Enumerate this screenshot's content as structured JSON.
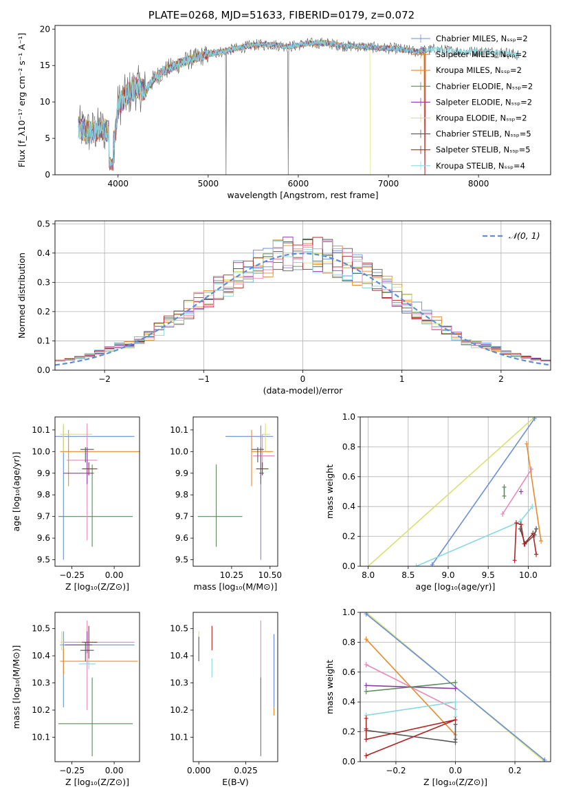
{
  "figure_title": "PLATE=0268, MJD=51633, FIBERID=0179, z=0.072",
  "colors": {
    "chab_miles": "#6a8fd8",
    "salp_miles": "#e8862a",
    "krou_miles": "#e88a2a",
    "chab_elodie": "#5a8a5a",
    "salp_elodie": "#8a3aaa",
    "krou_elodie": "#d8e070",
    "chab_stelib": "#555555",
    "salp_stelib": "#b22222",
    "krou_stelib": "#88d8e0",
    "pink": "#e888b8",
    "normal": "#5b8fd9"
  },
  "chart_data": [
    {
      "id": "spectrum",
      "type": "line",
      "xlabel": "wavelength [Angstrom, rest frame]",
      "ylabel": "Flux [f_λ10⁻¹⁷ erg cm⁻² s⁻¹ A⁻¹]",
      "xlim": [
        3300,
        8800
      ],
      "ylim": [
        0,
        20.5
      ],
      "xticks": [
        "4000",
        "5000",
        "6000",
        "7000",
        "8000"
      ],
      "yticks": [
        "0",
        "5",
        "10",
        "15",
        "20"
      ],
      "grid": false,
      "legend_position": "top-right",
      "legend": [
        {
          "text": "Chabrier MILES, Nₛₛₚ=2",
          "color": "chab_miles"
        },
        {
          "text": "Salpeter MILES, Nₛₛₚ=2",
          "color": "salp_miles"
        },
        {
          "text": "Kroupa MILES, Nₛₛₚ=2",
          "color": "krou_miles"
        },
        {
          "text": "Chabrier ELODIE, Nₛₛₚ=2",
          "color": "chab_elodie"
        },
        {
          "text": "Salpeter ELODIE, Nₛₛₚ=2",
          "color": "salp_elodie"
        },
        {
          "text": "Kroupa ELODIE, Nₛₛₚ=2",
          "color": "krou_elodie"
        },
        {
          "text": "Chabrier STELIB, Nₛₛₚ=5",
          "color": "chab_stelib"
        },
        {
          "text": "Salpeter STELIB, Nₛₛₚ=5",
          "color": "salp_stelib"
        },
        {
          "text": "Kroupa STELIB, Nₛₛₚ=4",
          "color": "krou_stelib"
        }
      ],
      "continuum": [
        [
          3560,
          6.5
        ],
        [
          3700,
          5.8
        ],
        [
          3800,
          6.3
        ],
        [
          3900,
          6.0
        ],
        [
          3960,
          4.5
        ],
        [
          4000,
          9.5
        ],
        [
          4100,
          11.0
        ],
        [
          4200,
          12.0
        ],
        [
          4300,
          11.5
        ],
        [
          4400,
          13.2
        ],
        [
          4500,
          14.2
        ],
        [
          4700,
          15.4
        ],
        [
          4900,
          16.2
        ],
        [
          5100,
          16.8
        ],
        [
          5300,
          17.3
        ],
        [
          5500,
          17.8
        ],
        [
          5700,
          17.9
        ],
        [
          5900,
          17.6
        ],
        [
          6100,
          18.0
        ],
        [
          6300,
          18.1
        ],
        [
          6500,
          17.7
        ],
        [
          6700,
          17.6
        ],
        [
          6900,
          17.4
        ],
        [
          7100,
          17.3
        ],
        [
          7300,
          16.9
        ],
        [
          7500,
          17.2
        ],
        [
          7700,
          17.0
        ],
        [
          7900,
          16.9
        ],
        [
          8100,
          16.9
        ],
        [
          8300,
          16.8
        ],
        [
          8450,
          16.4
        ]
      ]
    },
    {
      "id": "residual-hist",
      "type": "bar",
      "xlabel": "(data-model)/error",
      "ylabel": "Normed distribution",
      "xlim": [
        -2.5,
        2.5
      ],
      "ylim": [
        0,
        0.51
      ],
      "xticks": [
        "−2",
        "−1",
        "0",
        "1",
        "2"
      ],
      "yticks": [
        "0.0",
        "0.1",
        "0.2",
        "0.3",
        "0.4",
        "0.5"
      ],
      "grid": true,
      "legend_position": "top-right",
      "legend": [
        {
          "text": "𝒩(0, 1)",
          "color": "normal"
        }
      ],
      "bin_width": 0.1
    },
    {
      "id": "age-vs-Z",
      "type": "scatter",
      "xlabel": "Z [log₁₀(Z/Z⊙)]",
      "ylabel": "age  [log₁₀(age/yr)]",
      "xlim": [
        -0.35,
        0.15
      ],
      "ylim": [
        9.47,
        10.16
      ],
      "xticks": [
        "−0.25",
        "0.00"
      ],
      "yticks": [
        "9.5",
        "9.6",
        "9.7",
        "9.8",
        "9.9",
        "10.0",
        "10.1"
      ],
      "points": [
        {
          "x": -0.3,
          "y": 10.07,
          "xerr": [
            0.3,
            0.42
          ],
          "yerr": [
            0.57,
            0.05
          ],
          "color": "chab_miles"
        },
        {
          "x": -0.27,
          "y": 10.0,
          "xerr": [
            0.05,
            0.42
          ],
          "yerr": [
            0.16,
            0.1
          ],
          "color": "krou_miles"
        },
        {
          "x": -0.3,
          "y": 10.08,
          "xerr": [
            0.02,
            0.17
          ],
          "yerr": [
            0.08,
            0.05
          ],
          "color": "krou_elodie"
        },
        {
          "x": -0.13,
          "y": 9.7,
          "xerr": [
            0.2,
            0.24
          ],
          "yerr": [
            0.14,
            0.24
          ],
          "color": "chab_elodie"
        },
        {
          "x": -0.16,
          "y": 9.96,
          "xerr": [
            0.12,
            0.06
          ],
          "yerr": [
            0.37,
            0.17
          ],
          "color": "pink"
        },
        {
          "x": -0.16,
          "y": 9.9,
          "xerr": [
            0.14,
            0.04
          ],
          "yerr": [
            0.05,
            0.12
          ],
          "color": "salp_elodie"
        },
        {
          "x": -0.17,
          "y": 10.01,
          "xerr": [
            0.03,
            0.05
          ],
          "yerr": [
            0.06,
            0.01
          ],
          "color": "chab_stelib"
        },
        {
          "x": -0.15,
          "y": 9.92,
          "xerr": [
            0.04,
            0.05
          ],
          "yerr": [
            0.03,
            0.03
          ],
          "color": "salp_stelib"
        }
      ]
    },
    {
      "id": "age-vs-mass",
      "type": "scatter",
      "xlabel": "mass [log₁₀(M/M⊙)]",
      "ylabel": "",
      "xlim": [
        10.0,
        10.55
      ],
      "ylim": [
        9.47,
        10.16
      ],
      "xticks": [
        "10.25",
        "10.50"
      ],
      "yticks": [
        "9.5",
        "9.6",
        "9.7",
        "9.8",
        "9.9",
        "10.0",
        "10.1"
      ],
      "points": [
        {
          "x": 10.44,
          "y": 10.07,
          "xerr": [
            0.23,
            0.08
          ],
          "yerr": [
            0.57,
            0.05
          ],
          "color": "chab_miles"
        },
        {
          "x": 10.38,
          "y": 10.0,
          "xerr": [
            0.0,
            0.14
          ],
          "yerr": [
            0.16,
            0.1
          ],
          "color": "krou_miles"
        },
        {
          "x": 10.47,
          "y": 10.08,
          "xerr": [
            0.02,
            0.03
          ],
          "yerr": [
            0.08,
            0.05
          ],
          "color": "krou_elodie"
        },
        {
          "x": 10.15,
          "y": 9.7,
          "xerr": [
            0.12,
            0.17
          ],
          "yerr": [
            0.14,
            0.24
          ],
          "color": "chab_elodie"
        },
        {
          "x": 10.45,
          "y": 9.98,
          "xerr": [
            0.06,
            0.08
          ],
          "yerr": [
            0.05,
            0.1
          ],
          "color": "pink"
        },
        {
          "x": 10.44,
          "y": 9.9,
          "xerr": [
            0.01,
            0.02
          ],
          "yerr": [
            0.05,
            0.12
          ],
          "color": "salp_elodie"
        },
        {
          "x": 10.42,
          "y": 10.01,
          "xerr": [
            0.04,
            0.04
          ],
          "yerr": [
            0.06,
            0.01
          ],
          "color": "chab_stelib"
        },
        {
          "x": 10.45,
          "y": 9.92,
          "xerr": [
            0.04,
            0.04
          ],
          "yerr": [
            0.03,
            0.03
          ],
          "color": "salp_stelib"
        }
      ]
    },
    {
      "id": "weight-vs-age",
      "type": "line",
      "xlabel": "age  [log₁₀(age/yr)]",
      "ylabel": "mass weight",
      "xlim": [
        7.9,
        10.28
      ],
      "ylim": [
        0,
        1
      ],
      "xticks": [
        "8.0",
        "8.5",
        "9.0",
        "9.5",
        "10.0"
      ],
      "yticks": [
        "0.0",
        "0.2",
        "0.4",
        "0.6",
        "0.8",
        "1.0"
      ],
      "grid": true,
      "series": [
        {
          "color": "krou_elodie",
          "points": [
            [
              8.0,
              0.0
            ],
            [
              10.08,
              1.0
            ]
          ]
        },
        {
          "color": "chab_miles",
          "points": [
            [
              8.8,
              0.01
            ],
            [
              10.08,
              0.99
            ]
          ]
        },
        {
          "color": "krou_miles",
          "points": [
            [
              9.98,
              0.82
            ],
            [
              10.16,
              0.17
            ]
          ]
        },
        {
          "color": "pink",
          "points": [
            [
              9.68,
              0.35
            ],
            [
              10.04,
              0.65
            ]
          ]
        },
        {
          "color": "krou_stelib",
          "points": [
            [
              8.6,
              0.0
            ],
            [
              9.9,
              0.3
            ],
            [
              10.05,
              0.4
            ]
          ]
        },
        {
          "color": "chab_stelib",
          "points": [
            [
              9.9,
              0.25
            ],
            [
              9.96,
              0.15
            ],
            [
              10.08,
              0.21
            ],
            [
              10.1,
              0.25
            ]
          ]
        },
        {
          "color": "salp_stelib",
          "points": [
            [
              9.83,
              0.04
            ],
            [
              9.85,
              0.29
            ],
            [
              9.91,
              0.28
            ],
            [
              9.95,
              0.15
            ],
            [
              10.06,
              0.22
            ],
            [
              10.1,
              0.08
            ]
          ]
        },
        {
          "color": "salp_elodie",
          "points": [
            [
              9.91,
              0.5
            ]
          ]
        },
        {
          "color": "chab_elodie",
          "points": [
            [
              9.7,
              0.47
            ],
            [
              9.7,
              0.53
            ]
          ]
        }
      ]
    },
    {
      "id": "mass-vs-Z",
      "type": "scatter",
      "xlabel": "Z [log₁₀(Z/Z⊙)]",
      "ylabel": "mass [log₁₀(M/M⊙)]",
      "xlim": [
        -0.35,
        0.15
      ],
      "ylim": [
        10.01,
        10.56
      ],
      "xticks": [
        "−0.25",
        "0.00"
      ],
      "yticks": [
        "10.1",
        "10.2",
        "10.3",
        "10.4",
        "10.5"
      ],
      "points": [
        {
          "x": -0.3,
          "y": 10.44,
          "xerr": [
            0.02,
            0.42
          ],
          "yerr": [
            0.23,
            0.05
          ],
          "color": "chab_miles"
        },
        {
          "x": -0.3,
          "y": 10.38,
          "xerr": [
            0.02,
            0.44
          ],
          "yerr": [
            0.05,
            0.05
          ],
          "color": "krou_miles"
        },
        {
          "x": -0.31,
          "y": 10.45,
          "xerr": [
            0.01,
            0.13
          ],
          "yerr": [
            0.03,
            0.04
          ],
          "color": "krou_elodie"
        },
        {
          "x": -0.13,
          "y": 10.15,
          "xerr": [
            0.2,
            0.24
          ],
          "yerr": [
            0.12,
            0.17
          ],
          "color": "chab_elodie"
        },
        {
          "x": -0.16,
          "y": 10.45,
          "xerr": [
            0.14,
            0.28
          ],
          "yerr": [
            0.25,
            0.08
          ],
          "color": "pink"
        },
        {
          "x": -0.16,
          "y": 10.44,
          "xerr": [
            0.13,
            0.03
          ],
          "yerr": [
            0.03,
            0.05
          ],
          "color": "salp_elodie"
        },
        {
          "x": -0.17,
          "y": 10.42,
          "xerr": [
            0.03,
            0.05
          ],
          "yerr": [
            0.04,
            0.03
          ],
          "color": "chab_stelib"
        },
        {
          "x": -0.15,
          "y": 10.45,
          "xerr": [
            0.04,
            0.05
          ],
          "yerr": [
            0.06,
            0.06
          ],
          "color": "salp_stelib"
        },
        {
          "x": -0.15,
          "y": 10.37,
          "xerr": [
            0.06,
            0.04
          ],
          "yerr": [
            0.02,
            0.02
          ],
          "color": "krou_stelib"
        }
      ]
    },
    {
      "id": "mass-vs-ebv",
      "type": "scatter",
      "xlabel": "E(B-V)",
      "ylabel": "",
      "xlim": [
        -0.003,
        0.042
      ],
      "ylim": [
        10.01,
        10.56
      ],
      "xticks": [
        "0.000",
        "0.025"
      ],
      "yticks": [
        "10.1",
        "10.2",
        "10.3",
        "10.4",
        "10.5"
      ],
      "points": [
        {
          "x": 0.0,
          "y": 10.42,
          "xerr": [
            0,
            0
          ],
          "yerr": [
            0.04,
            0.05
          ],
          "color": "chab_stelib"
        },
        {
          "x": 0.0,
          "y": 10.48,
          "xerr": [
            0,
            0
          ],
          "yerr": [
            0.01,
            0.01
          ],
          "color": "krou_elodie"
        },
        {
          "x": 0.007,
          "y": 10.45,
          "xerr": [
            0,
            0
          ],
          "yerr": [
            0.03,
            0.06
          ],
          "color": "salp_stelib"
        },
        {
          "x": 0.007,
          "y": 10.37,
          "xerr": [
            0,
            0
          ],
          "yerr": [
            0.05,
            0.02
          ],
          "color": "krou_stelib"
        },
        {
          "x": 0.033,
          "y": 10.45,
          "xerr": [
            0,
            0
          ],
          "yerr": [
            0.25,
            0.08
          ],
          "color": "pink"
        },
        {
          "x": 0.033,
          "y": 10.15,
          "xerr": [
            0,
            0
          ],
          "yerr": [
            0.12,
            0.17
          ],
          "color": "chab_elodie"
        },
        {
          "x": 0.04,
          "y": 10.38,
          "xerr": [
            0,
            0
          ],
          "yerr": [
            0.2,
            0.1
          ],
          "color": "krou_miles"
        },
        {
          "x": 0.04,
          "y": 10.44,
          "xerr": [
            0,
            0
          ],
          "yerr": [
            0.23,
            0.04
          ],
          "color": "chab_miles"
        }
      ]
    },
    {
      "id": "weight-vs-Z",
      "type": "line",
      "xlabel": "Z [log₁₀(Z/Z⊙)]",
      "ylabel": "mass weight",
      "xlim": [
        -0.32,
        0.32
      ],
      "ylim": [
        0,
        1
      ],
      "xticks": [
        "−0.2",
        "0.0",
        "0.2"
      ],
      "yticks": [
        "0.0",
        "0.2",
        "0.4",
        "0.6",
        "0.8",
        "1.0"
      ],
      "grid": true,
      "series": [
        {
          "color": "krou_elodie",
          "points": [
            [
              -0.3,
              1.0
            ],
            [
              0.3,
              0.0
            ]
          ]
        },
        {
          "color": "chab_miles",
          "points": [
            [
              -0.3,
              0.99
            ],
            [
              0.3,
              0.01
            ]
          ]
        },
        {
          "color": "krou_miles",
          "points": [
            [
              -0.3,
              0.82
            ],
            [
              0.0,
              0.18
            ]
          ]
        },
        {
          "color": "pink",
          "points": [
            [
              -0.3,
              0.65
            ],
            [
              0.0,
              0.35
            ]
          ]
        },
        {
          "color": "salp_elodie",
          "points": [
            [
              -0.3,
              0.51
            ],
            [
              0.0,
              0.49
            ]
          ]
        },
        {
          "color": "chab_elodie",
          "points": [
            [
              -0.3,
              0.47
            ],
            [
              0.0,
              0.53
            ]
          ]
        },
        {
          "color": "krou_stelib",
          "points": [
            [
              -0.3,
              0.31
            ],
            [
              0.0,
              0.4
            ],
            [
              0.0,
              0.3
            ]
          ]
        },
        {
          "color": "chab_stelib",
          "points": [
            [
              -0.3,
              0.21
            ],
            [
              0.0,
              0.13
            ],
            [
              0.0,
              0.25
            ],
            [
              0.0,
              0.15
            ]
          ]
        },
        {
          "color": "salp_stelib",
          "points": [
            [
              -0.3,
              0.04
            ],
            [
              0.0,
              0.28
            ],
            [
              -0.3,
              0.15
            ],
            [
              -0.3,
              0.22
            ],
            [
              -0.3,
              0.29
            ]
          ]
        }
      ]
    }
  ]
}
